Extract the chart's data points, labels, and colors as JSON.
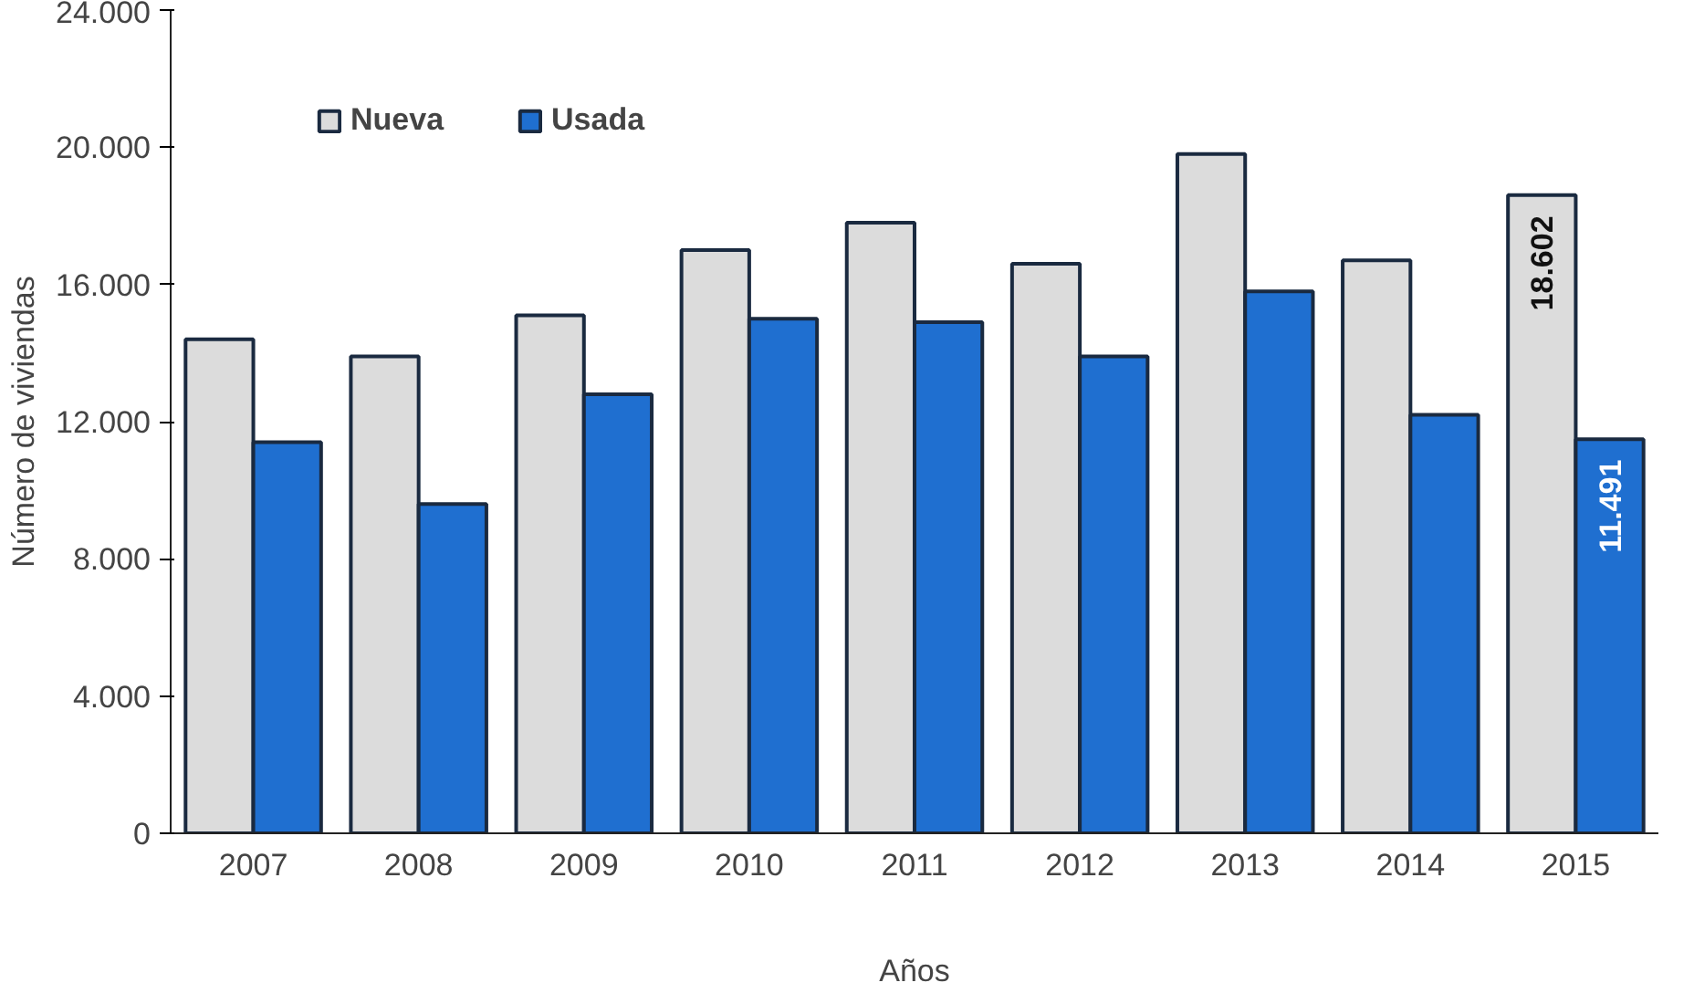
{
  "chart_data": {
    "type": "bar",
    "xlabel": "Años",
    "ylabel": "Número de viviendas",
    "categories": [
      "2007",
      "2008",
      "2009",
      "2010",
      "2011",
      "2012",
      "2013",
      "2014",
      "2015"
    ],
    "series": [
      {
        "name": "Nueva",
        "color": "#dcdcdc",
        "values": [
          14400,
          13900,
          15100,
          17000,
          17800,
          16600,
          19800,
          16700,
          18602
        ],
        "value_labels": [
          null,
          null,
          null,
          null,
          null,
          null,
          null,
          null,
          "18.602"
        ]
      },
      {
        "name": "Usada",
        "color": "#1f6fd0",
        "values": [
          11400,
          9600,
          12800,
          15000,
          14900,
          13900,
          15800,
          12200,
          11491
        ],
        "value_labels": [
          null,
          null,
          null,
          null,
          null,
          null,
          null,
          null,
          "11.491"
        ]
      }
    ],
    "ylim": [
      0,
      24000
    ],
    "yticks": [
      {
        "value": 0,
        "label": "0"
      },
      {
        "value": 4000,
        "label": "4.000"
      },
      {
        "value": 8000,
        "label": "8.000"
      },
      {
        "value": 12000,
        "label": "12.000"
      },
      {
        "value": 16000,
        "label": "16.000"
      },
      {
        "value": 20000,
        "label": "20.000"
      },
      {
        "value": 24000,
        "label": "24.000"
      }
    ],
    "legend": "top",
    "grid": false
  }
}
